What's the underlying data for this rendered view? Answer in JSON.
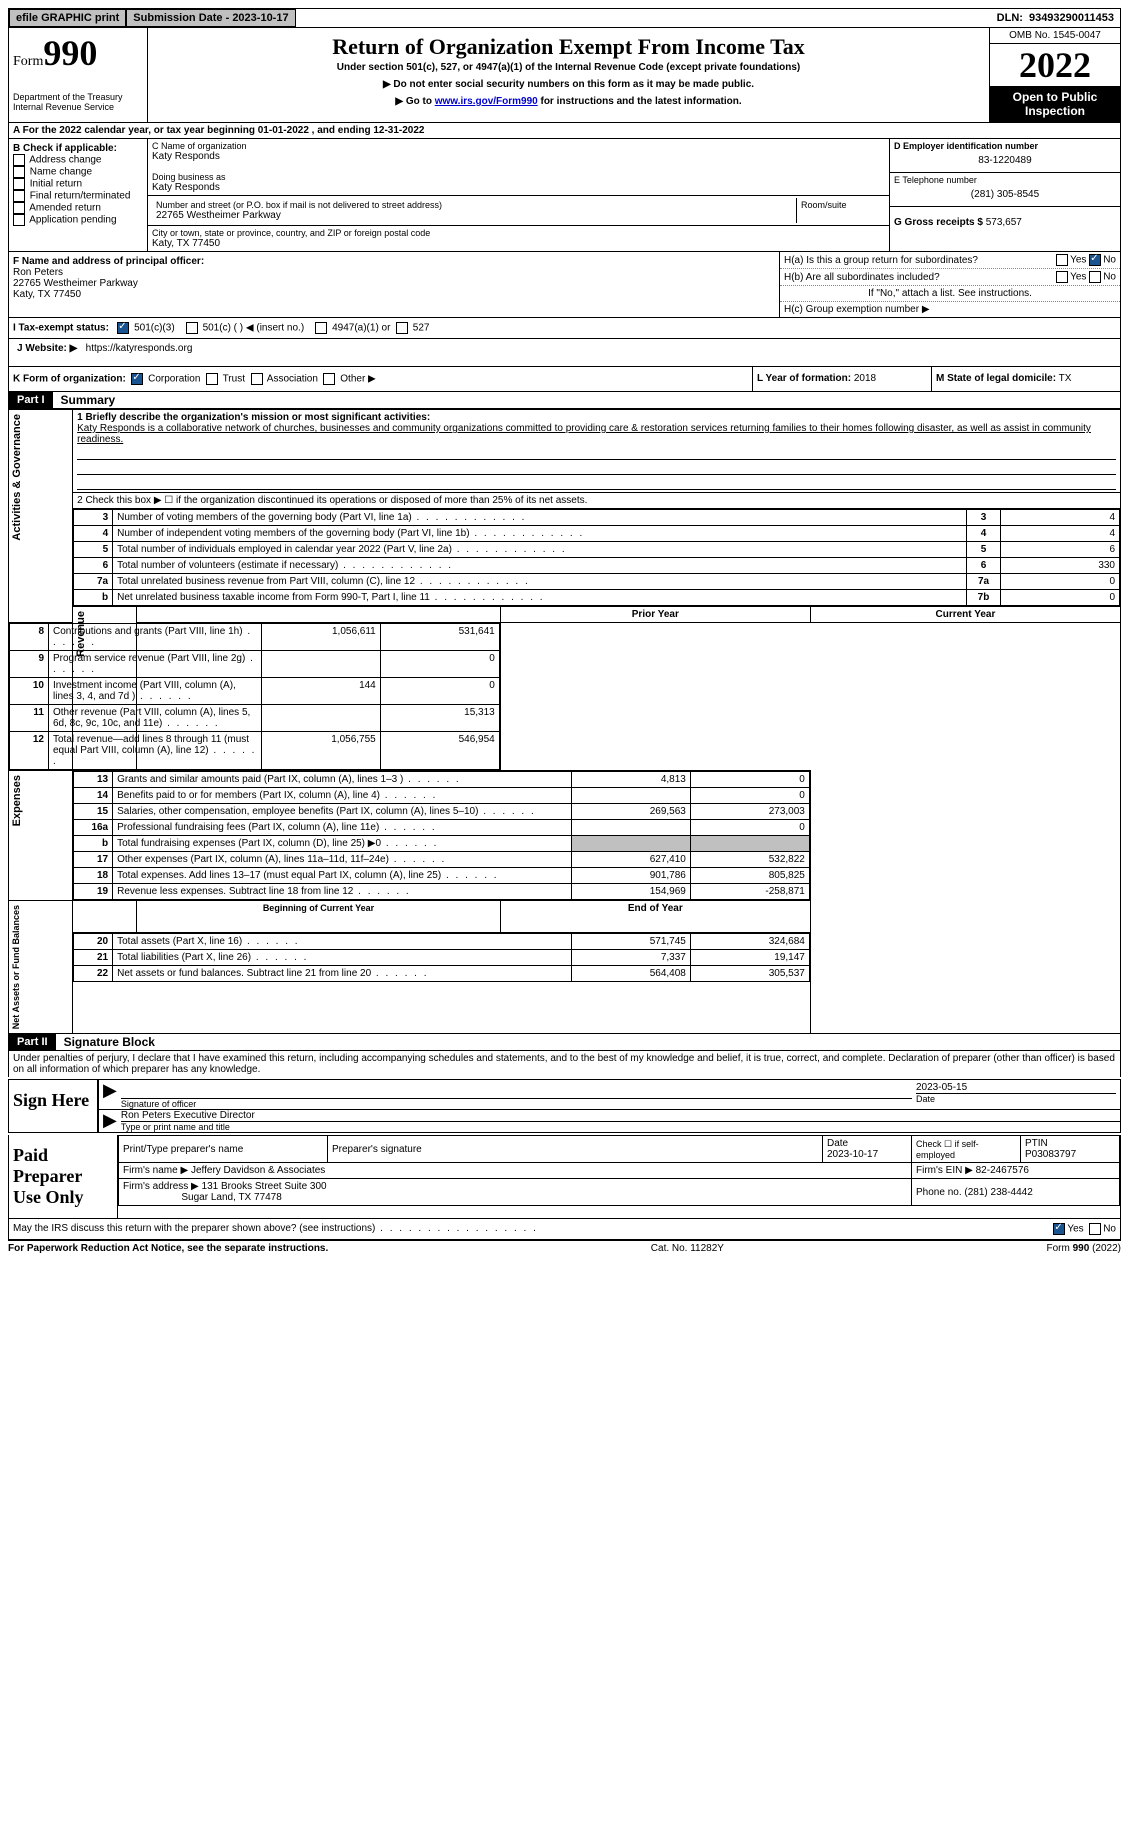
{
  "topbar": {
    "efile": "efile GRAPHIC print",
    "submission": "Submission Date - 2023-10-17",
    "dln_label": "DLN:",
    "dln": "93493290011453"
  },
  "header": {
    "form_label": "Form",
    "form_num": "990",
    "dept": "Department of the Treasury Internal Revenue Service",
    "title": "Return of Organization Exempt From Income Tax",
    "sub1": "Under section 501(c), 527, or 4947(a)(1) of the Internal Revenue Code (except private foundations)",
    "sub2": "▶ Do not enter social security numbers on this form as it may be made public.",
    "sub3_pre": "▶ Go to ",
    "sub3_link": "www.irs.gov/Form990",
    "sub3_post": " for instructions and the latest information.",
    "omb": "OMB No. 1545-0047",
    "year": "2022",
    "open": "Open to Public Inspection"
  },
  "row_a": {
    "text_pre": "A For the 2022 calendar year, or tax year beginning ",
    "begin": "01-01-2022",
    "mid": "   , and ending ",
    "end": "12-31-2022"
  },
  "box_b": {
    "label": "B Check if applicable:",
    "opts": [
      "Address change",
      "Name change",
      "Initial return",
      "Final return/terminated",
      "Amended return",
      "Application pending"
    ]
  },
  "box_c": {
    "name_label": "C Name of organization",
    "name": "Katy Responds",
    "dba_label": "Doing business as",
    "dba": "Katy Responds",
    "street_label": "Number and street (or P.O. box if mail is not delivered to street address)",
    "street": "22765 Westheimer Parkway",
    "room_label": "Room/suite",
    "city_label": "City or town, state or province, country, and ZIP or foreign postal code",
    "city": "Katy, TX  77450"
  },
  "box_d": {
    "ein_label": "D Employer identification number",
    "ein": "83-1220489",
    "phone_label": "E Telephone number",
    "phone": "(281) 305-8545",
    "gross_label": "G Gross receipts $",
    "gross": "573,657"
  },
  "box_f": {
    "label": "F  Name and address of principal officer:",
    "name": "Ron Peters",
    "street": "22765 Westheimer Parkway",
    "city": "Katy, TX  77450"
  },
  "box_h": {
    "ha_label": "H(a)  Is this a group return for subordinates?",
    "hb_label": "H(b)  Are all subordinates included?",
    "h_note": "If \"No,\" attach a list. See instructions.",
    "hc_label": "H(c)  Group exemption number ▶"
  },
  "box_i": {
    "label": "I    Tax-exempt status:",
    "opt1": "501(c)(3)",
    "opt2": "501(c) (   ) ◀ (insert no.)",
    "opt3": "4947(a)(1) or",
    "opt4": "527"
  },
  "box_j": {
    "label": "J   Website: ▶",
    "value": "https://katyresponds.org"
  },
  "box_k": {
    "label": "K Form of organization:",
    "opts": [
      "Corporation",
      "Trust",
      "Association",
      "Other ▶"
    ]
  },
  "box_l": {
    "label": "L Year of formation:",
    "value": "2018"
  },
  "box_m": {
    "label": "M State of legal domicile:",
    "value": "TX"
  },
  "part1": {
    "header": "Part I",
    "title": "Summary",
    "line1_label": "1   Briefly describe the organization's mission or most significant activities:",
    "line1_text": "Katy Responds is a collaborative network of churches, businesses and community organizations committed to providing care & restoration services returning families to their homes following disaster, as well as assist in community readiness.",
    "line2": "2   Check this box ▶ ☐  if the organization discontinued its operations or disposed of more than 25% of its net assets.",
    "vlabel_ag": "Activities & Governance",
    "vlabel_rev": "Revenue",
    "vlabel_exp": "Expenses",
    "vlabel_na": "Net Assets or Fund Balances",
    "rows_gov": [
      {
        "n": "3",
        "t": "Number of voting members of the governing body (Part VI, line 1a)",
        "ln": "3",
        "v": "4"
      },
      {
        "n": "4",
        "t": "Number of independent voting members of the governing body (Part VI, line 1b)",
        "ln": "4",
        "v": "4"
      },
      {
        "n": "5",
        "t": "Total number of individuals employed in calendar year 2022 (Part V, line 2a)",
        "ln": "5",
        "v": "6"
      },
      {
        "n": "6",
        "t": "Total number of volunteers (estimate if necessary)",
        "ln": "6",
        "v": "330"
      },
      {
        "n": "7a",
        "t": "Total unrelated business revenue from Part VIII, column (C), line 12",
        "ln": "7a",
        "v": "0"
      },
      {
        "n": "b",
        "t": "Net unrelated business taxable income from Form 990-T, Part I, line 11",
        "ln": "7b",
        "v": "0"
      }
    ],
    "col_prior": "Prior Year",
    "col_current": "Current Year",
    "rows_rev": [
      {
        "n": "8",
        "t": "Contributions and grants (Part VIII, line 1h)",
        "p": "1,056,611",
        "c": "531,641"
      },
      {
        "n": "9",
        "t": "Program service revenue (Part VIII, line 2g)",
        "p": "",
        "c": "0"
      },
      {
        "n": "10",
        "t": "Investment income (Part VIII, column (A), lines 3, 4, and 7d )",
        "p": "144",
        "c": "0"
      },
      {
        "n": "11",
        "t": "Other revenue (Part VIII, column (A), lines 5, 6d, 8c, 9c, 10c, and 11e)",
        "p": "",
        "c": "15,313"
      },
      {
        "n": "12",
        "t": "Total revenue—add lines 8 through 11 (must equal Part VIII, column (A), line 12)",
        "p": "1,056,755",
        "c": "546,954"
      }
    ],
    "rows_exp": [
      {
        "n": "13",
        "t": "Grants and similar amounts paid (Part IX, column (A), lines 1–3 )",
        "p": "4,813",
        "c": "0"
      },
      {
        "n": "14",
        "t": "Benefits paid to or for members (Part IX, column (A), line 4)",
        "p": "",
        "c": "0"
      },
      {
        "n": "15",
        "t": "Salaries, other compensation, employee benefits (Part IX, column (A), lines 5–10)",
        "p": "269,563",
        "c": "273,003"
      },
      {
        "n": "16a",
        "t": "Professional fundraising fees (Part IX, column (A), line 11e)",
        "p": "",
        "c": "0"
      },
      {
        "n": "b",
        "t": "Total fundraising expenses (Part IX, column (D), line 25) ▶0",
        "p": "grey",
        "c": "grey"
      },
      {
        "n": "17",
        "t": "Other expenses (Part IX, column (A), lines 11a–11d, 11f–24e)",
        "p": "627,410",
        "c": "532,822"
      },
      {
        "n": "18",
        "t": "Total expenses. Add lines 13–17 (must equal Part IX, column (A), line 25)",
        "p": "901,786",
        "c": "805,825"
      },
      {
        "n": "19",
        "t": "Revenue less expenses. Subtract line 18 from line 12",
        "p": "154,969",
        "c": "-258,871"
      }
    ],
    "col_begin": "Beginning of Current Year",
    "col_end": "End of Year",
    "rows_na": [
      {
        "n": "20",
        "t": "Total assets (Part X, line 16)",
        "p": "571,745",
        "c": "324,684"
      },
      {
        "n": "21",
        "t": "Total liabilities (Part X, line 26)",
        "p": "7,337",
        "c": "19,147"
      },
      {
        "n": "22",
        "t": "Net assets or fund balances. Subtract line 21 from line 20",
        "p": "564,408",
        "c": "305,537"
      }
    ]
  },
  "part2": {
    "header": "Part II",
    "title": "Signature Block",
    "declaration": "Under penalties of perjury, I declare that I have examined this return, including accompanying schedules and statements, and to the best of my knowledge and belief, it is true, correct, and complete. Declaration of preparer (other than officer) is based on all information of which preparer has any knowledge.",
    "sign_here": "Sign Here",
    "sig_officer": "Signature of officer",
    "sig_date": "2023-05-15",
    "date_label": "Date",
    "officer_name": "Ron Peters  Executive Director",
    "type_label": "Type or print name and title",
    "paid_label": "Paid Preparer Use Only",
    "prep_name_label": "Print/Type preparer's name",
    "prep_sig_label": "Preparer's signature",
    "prep_date_label": "Date",
    "prep_date": "2023-10-17",
    "check_self": "Check ☐ if self-employed",
    "ptin_label": "PTIN",
    "ptin": "P03083797",
    "firm_name_label": "Firm's name      ▶",
    "firm_name": "Jeffery Davidson & Associates",
    "firm_ein_label": "Firm's EIN ▶",
    "firm_ein": "82-2467576",
    "firm_addr_label": "Firm's address ▶",
    "firm_addr1": "131 Brooks Street Suite 300",
    "firm_addr2": "Sugar Land, TX  77478",
    "phone_label": "Phone no.",
    "phone": "(281) 238-4442",
    "discuss": "May the IRS discuss this return with the preparer shown above? (see instructions)"
  },
  "footer": {
    "left": "For Paperwork Reduction Act Notice, see the separate instructions.",
    "mid": "Cat. No. 11282Y",
    "right": "Form 990 (2022)"
  },
  "labels": {
    "yes": "Yes",
    "no": "No"
  }
}
